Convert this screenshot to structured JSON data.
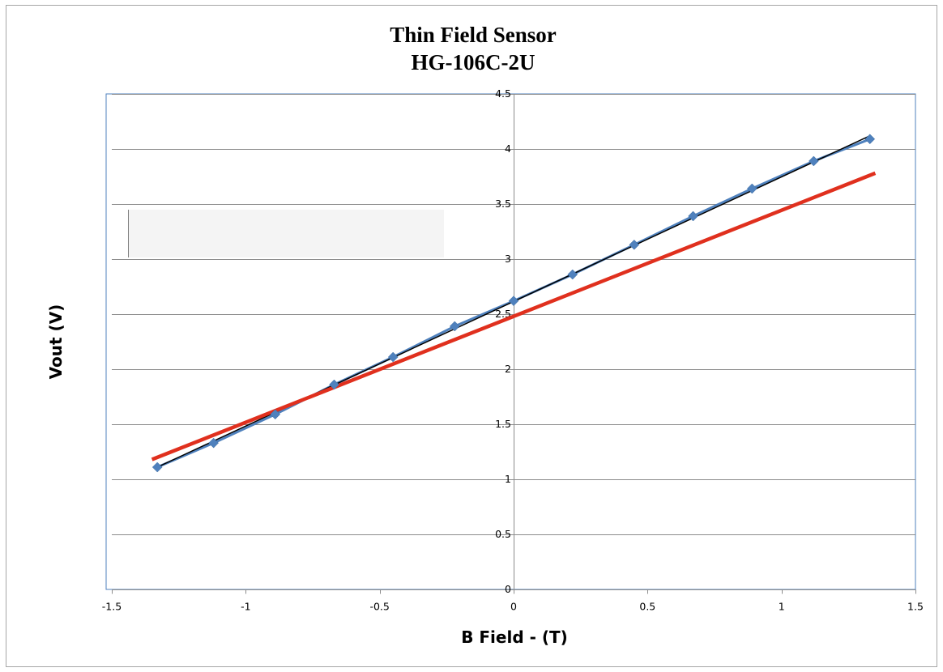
{
  "chart_data": {
    "type": "scatter",
    "title": "Thin Field Sensor",
    "subtitle": "HG-106C-2U",
    "xlabel": "B Field - (T)",
    "ylabel": "Vout  (V)",
    "xlim": [
      -1.5,
      1.5
    ],
    "ylim": [
      0,
      4.5
    ],
    "xticks": [
      -1.5,
      -1,
      -0.5,
      0,
      0.5,
      1,
      1.5
    ],
    "yticks": [
      0,
      0.5,
      1,
      1.5,
      2,
      2.5,
      3,
      3.5,
      4,
      4.5
    ],
    "xtick_labels": [
      "-1.5",
      "-1",
      "-0.5",
      "0",
      "0.5",
      "1",
      "1.5"
    ],
    "ytick_labels": [
      "0",
      "0.5",
      "1",
      "1.5",
      "2",
      "2.5",
      "3",
      "3.5",
      "4",
      "4.5"
    ],
    "grid": "horizontal",
    "legend": "none",
    "series": [
      {
        "kind": "scatter-line",
        "color": "#4f81bd",
        "marker": "diamond",
        "x": [
          -1.33,
          -1.12,
          -0.89,
          -0.67,
          -0.45,
          -0.22,
          0.0,
          0.22,
          0.45,
          0.67,
          0.89,
          1.12,
          1.33
        ],
        "y": [
          1.11,
          1.33,
          1.59,
          1.86,
          2.11,
          2.39,
          2.62,
          2.86,
          3.13,
          3.39,
          3.64,
          3.89,
          4.09
        ]
      },
      {
        "kind": "trendline",
        "color": "#000000",
        "x": [
          -1.33,
          1.33
        ],
        "y": [
          1.11,
          4.12
        ]
      },
      {
        "kind": "line",
        "color": "#e0301e",
        "x": [
          -1.35,
          1.35
        ],
        "y": [
          1.18,
          3.78
        ]
      }
    ]
  }
}
